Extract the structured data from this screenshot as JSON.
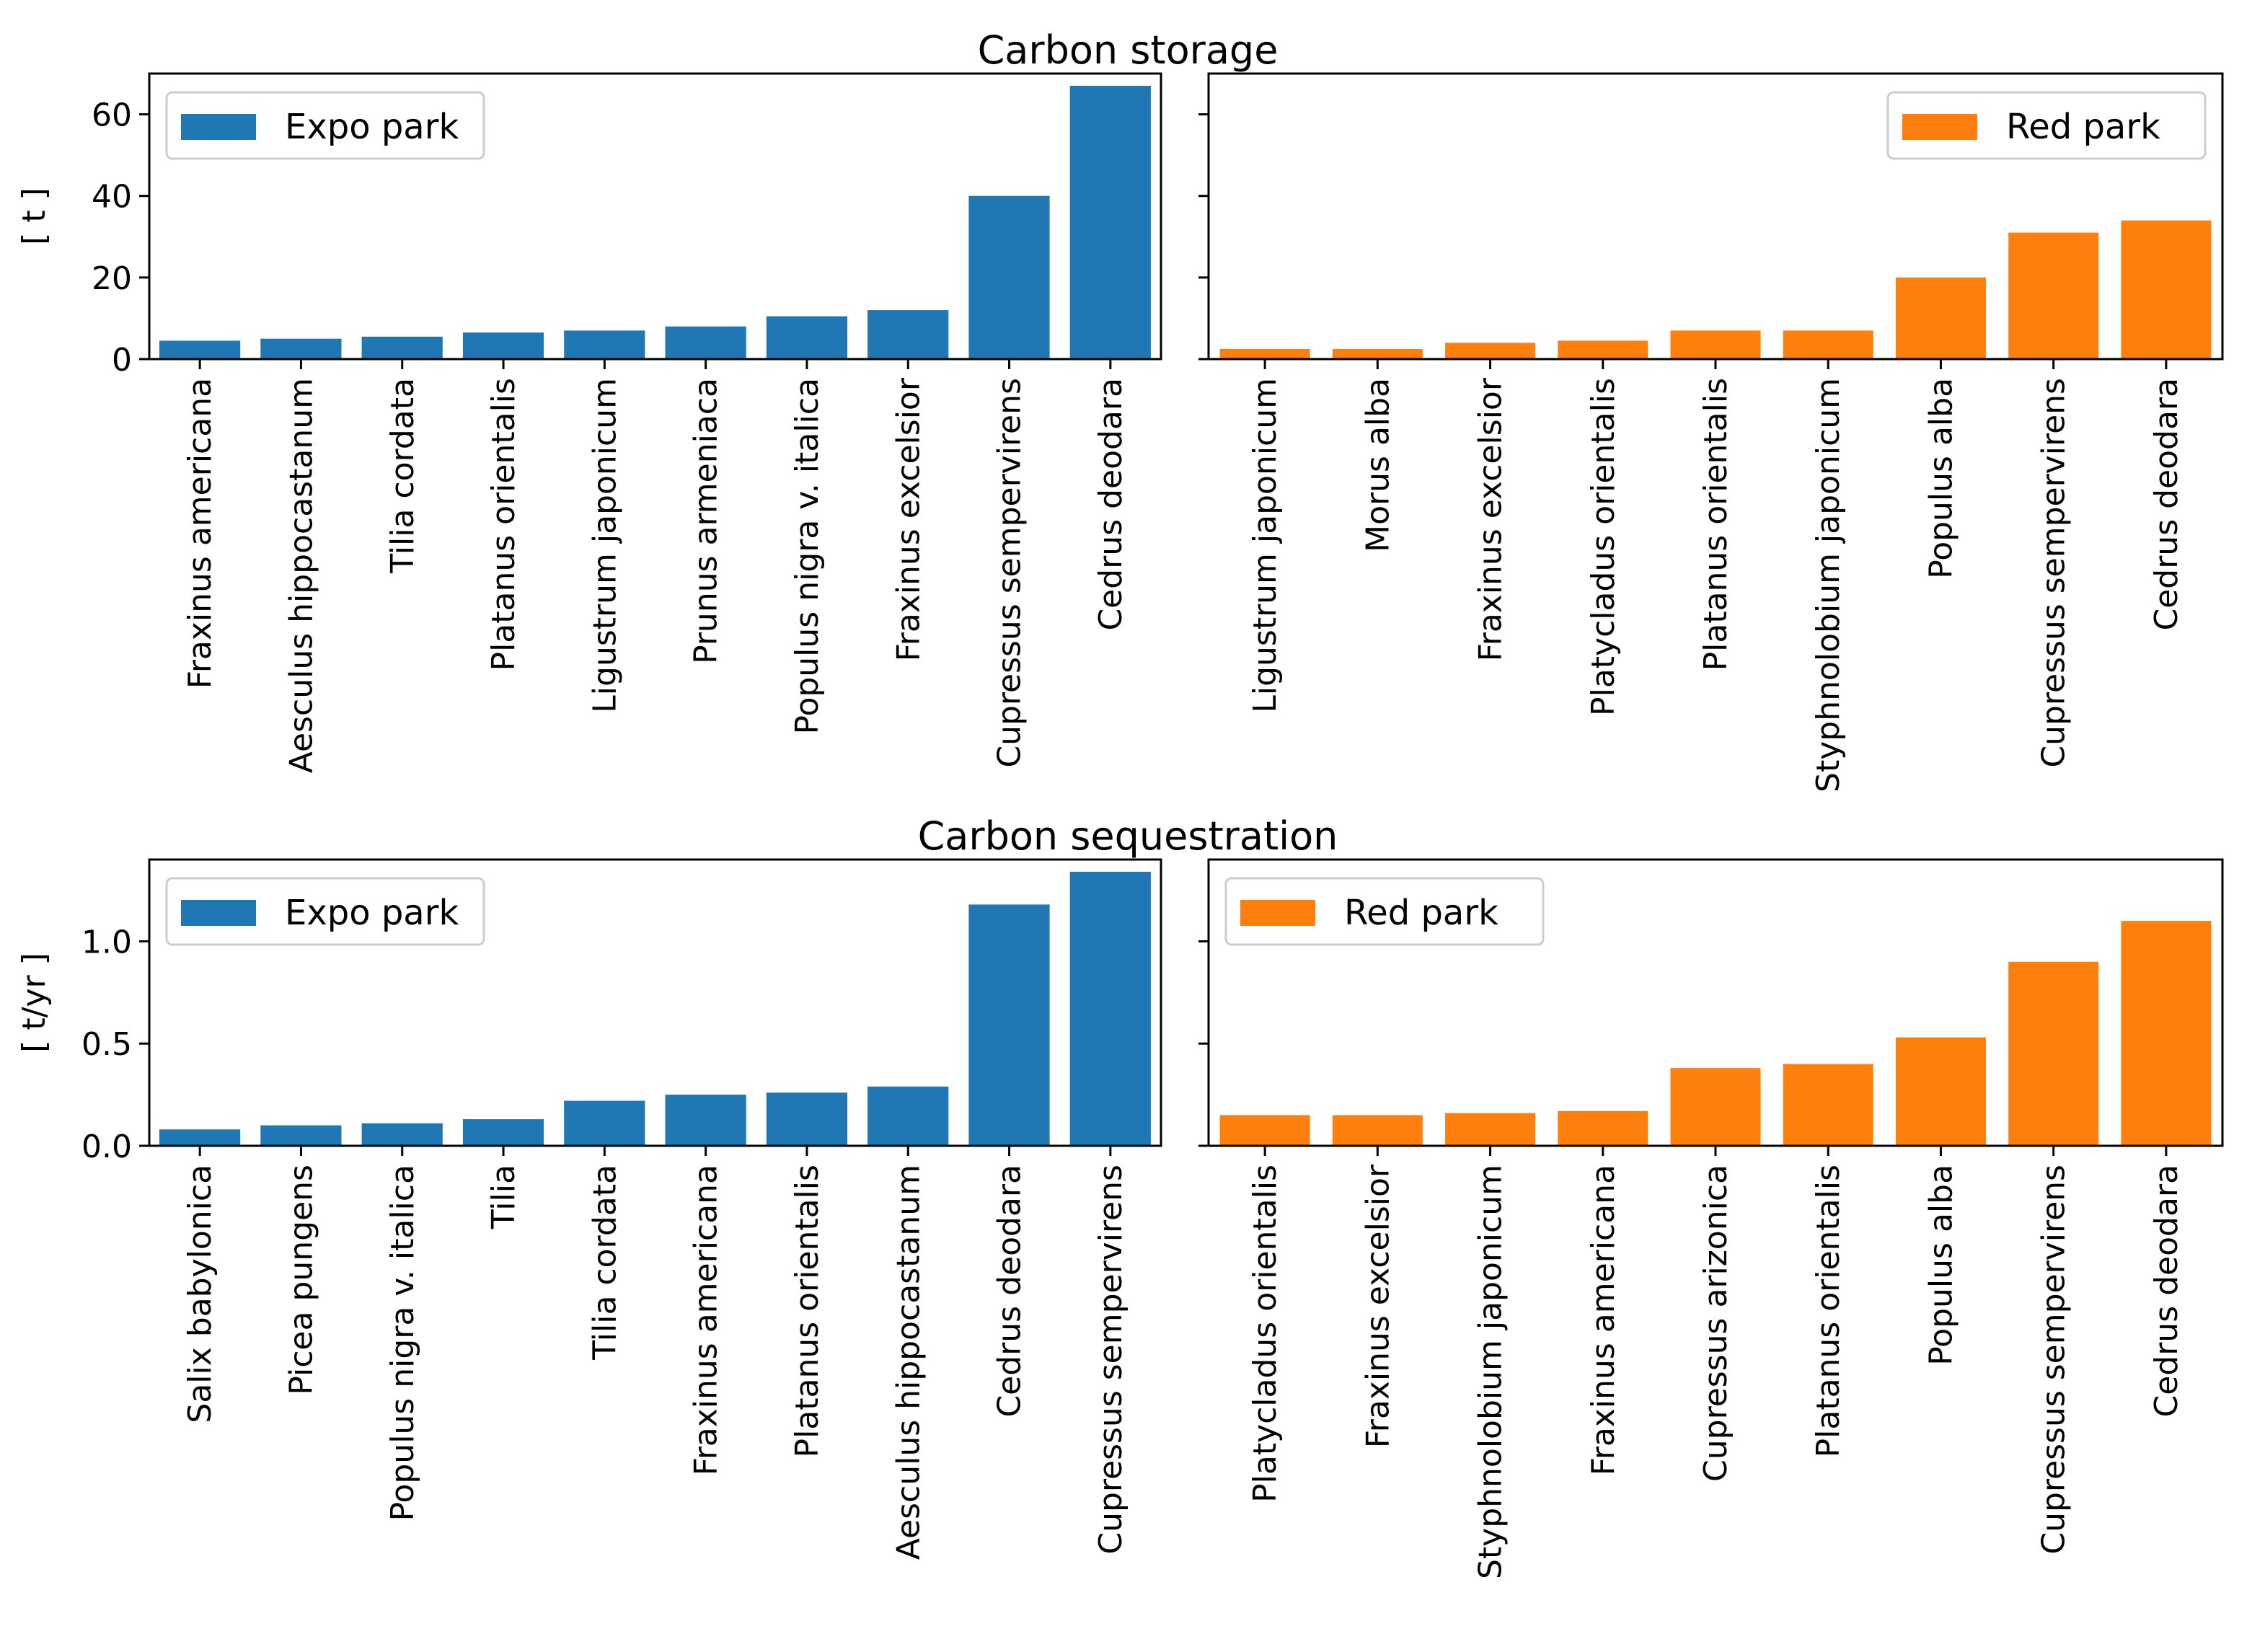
{
  "chart_data": [
    {
      "type": "bar",
      "title": "Carbon storage",
      "ylabel": "[ t ]",
      "xlabel": "",
      "ylim": [
        0,
        70
      ],
      "yticks": [
        0,
        20,
        40,
        60
      ],
      "legend": "top-left",
      "series": [
        {
          "name": "Expo park",
          "color": "#1f77b4"
        }
      ],
      "categories": [
        "Fraxinus americana",
        "Aesculus hippocastanum",
        "Tilia cordata",
        "Platanus orientalis",
        "Ligustrum japonicum",
        "Prunus armeniaca",
        "Populus nigra v. italica",
        "Fraxinus excelsior",
        "Cupressus sempervirens",
        "Cedrus deodara"
      ],
      "values": [
        4.5,
        5,
        5.5,
        6.5,
        7,
        8,
        10.5,
        12,
        40,
        67
      ]
    },
    {
      "type": "bar",
      "title": "",
      "ylabel": "",
      "xlabel": "",
      "ylim": [
        0,
        70
      ],
      "yticks": [
        0,
        20,
        40,
        60
      ],
      "legend": "top-right",
      "series": [
        {
          "name": "Red park",
          "color": "#ff7f0e"
        }
      ],
      "categories": [
        "Ligustrum japonicum",
        "Morus alba",
        "Fraxinus excelsior",
        "Platycladus orientalis",
        "Platanus orientalis",
        "Styphnolobium japonicum",
        "Populus alba",
        "Cupressus sempervirens",
        "Cedrus deodara"
      ],
      "values": [
        2.5,
        2.5,
        4,
        4.5,
        7,
        7,
        20,
        31,
        34
      ]
    },
    {
      "type": "bar",
      "title": "Carbon sequestration",
      "ylabel": "[ t/yr ]",
      "xlabel": "",
      "ylim": [
        0,
        1.4
      ],
      "yticks": [
        0.0,
        0.5,
        1.0
      ],
      "ytick_labels": [
        "0.0",
        "0.5",
        "1.0"
      ],
      "legend": "top-left",
      "series": [
        {
          "name": "Expo park",
          "color": "#1f77b4"
        }
      ],
      "categories": [
        "Salix babylonica",
        "Picea pungens",
        "Populus nigra v. italica",
        "Tilia",
        "Tilia cordata",
        "Fraxinus americana",
        "Platanus orientalis",
        "Aesculus hippocastanum",
        "Cedrus deodara",
        "Cupressus sempervirens"
      ],
      "values": [
        0.08,
        0.1,
        0.11,
        0.13,
        0.22,
        0.25,
        0.26,
        0.29,
        1.18,
        1.34
      ]
    },
    {
      "type": "bar",
      "title": "",
      "ylabel": "",
      "xlabel": "",
      "ylim": [
        0,
        1.4
      ],
      "yticks": [
        0.0,
        0.5,
        1.0
      ],
      "legend": "top-left",
      "series": [
        {
          "name": "Red park",
          "color": "#ff7f0e"
        }
      ],
      "categories": [
        "Platycladus orientalis",
        "Fraxinus excelsior",
        "Styphnolobium japonicum",
        "Fraxinus americana",
        "Cupressus arizonica",
        "Platanus orientalis",
        "Populus alba",
        "Cupressus sempervirens",
        "Cedrus deodara"
      ],
      "values": [
        0.15,
        0.15,
        0.16,
        0.17,
        0.38,
        0.4,
        0.53,
        0.9,
        1.1
      ]
    }
  ]
}
